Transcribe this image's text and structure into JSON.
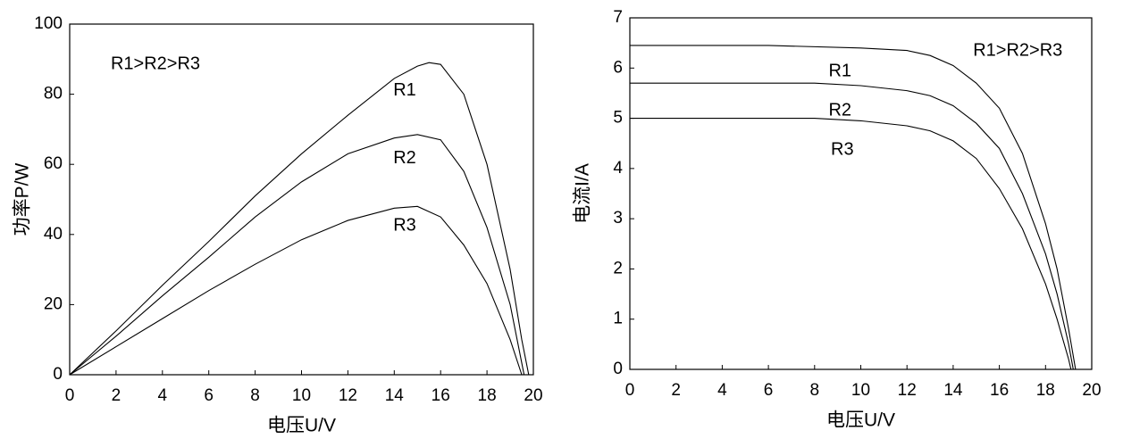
{
  "chart_data": [
    {
      "type": "line",
      "ylabel": "功率P/W",
      "xlabel": "电压U/V",
      "annotation": "R1>R2>R3",
      "xlim": [
        0,
        20
      ],
      "ylim": [
        0,
        100
      ],
      "xticks": [
        0,
        2,
        4,
        6,
        8,
        10,
        12,
        14,
        16,
        18,
        20
      ],
      "yticks": [
        0,
        20,
        40,
        60,
        80,
        100
      ],
      "series": [
        {
          "name": "R1",
          "color": "#000000",
          "x": [
            0,
            2,
            4,
            6,
            8,
            10,
            12,
            14,
            15,
            15.5,
            16,
            17,
            18,
            19,
            19.5,
            19.8
          ],
          "values": [
            0,
            12.5,
            25.5,
            38,
            51,
            63,
            74,
            84.5,
            88,
            89,
            88.5,
            80,
            60,
            30,
            10,
            0
          ]
        },
        {
          "name": "R2",
          "color": "#000000",
          "x": [
            0,
            2,
            4,
            6,
            8,
            10,
            12,
            14,
            15,
            16,
            17,
            18,
            19,
            19.6
          ],
          "values": [
            0,
            11,
            22.5,
            33.5,
            45,
            55,
            63,
            67.5,
            68.5,
            67,
            58,
            42,
            20,
            0
          ]
        },
        {
          "name": "R3",
          "color": "#000000",
          "x": [
            0,
            2,
            4,
            6,
            8,
            10,
            12,
            14,
            15,
            16,
            17,
            18,
            19,
            19.5
          ],
          "values": [
            0,
            8,
            16,
            24,
            31.5,
            38.5,
            44,
            47.5,
            48,
            45,
            37,
            26,
            10,
            0
          ]
        }
      ]
    },
    {
      "type": "line",
      "ylabel": "电流I/A",
      "xlabel": "电压U/V",
      "annotation": "R1>R2>R3",
      "xlim": [
        0,
        20
      ],
      "ylim": [
        0,
        7
      ],
      "xticks": [
        0,
        2,
        4,
        6,
        8,
        10,
        12,
        14,
        16,
        18,
        20
      ],
      "yticks": [
        0,
        1,
        2,
        3,
        4,
        5,
        6,
        7
      ],
      "series": [
        {
          "name": "R1",
          "color": "#000000",
          "x": [
            0,
            6,
            10,
            12,
            13,
            14,
            15,
            16,
            17,
            18,
            18.5,
            19,
            19.3
          ],
          "values": [
            6.45,
            6.45,
            6.4,
            6.35,
            6.25,
            6.05,
            5.7,
            5.2,
            4.3,
            2.9,
            2.0,
            0.8,
            0
          ]
        },
        {
          "name": "R2",
          "color": "#000000",
          "x": [
            0,
            8,
            10,
            12,
            13,
            14,
            15,
            16,
            17,
            18,
            18.5,
            19,
            19.2
          ],
          "values": [
            5.7,
            5.7,
            5.65,
            5.55,
            5.45,
            5.25,
            4.9,
            4.4,
            3.5,
            2.3,
            1.5,
            0.5,
            0
          ]
        },
        {
          "name": "R3",
          "color": "#000000",
          "x": [
            0,
            8,
            10,
            12,
            13,
            14,
            15,
            16,
            17,
            18,
            18.5,
            19,
            19.1
          ],
          "values": [
            5.0,
            5.0,
            4.95,
            4.85,
            4.75,
            4.55,
            4.2,
            3.6,
            2.8,
            1.7,
            1.0,
            0.2,
            0
          ]
        }
      ]
    }
  ]
}
